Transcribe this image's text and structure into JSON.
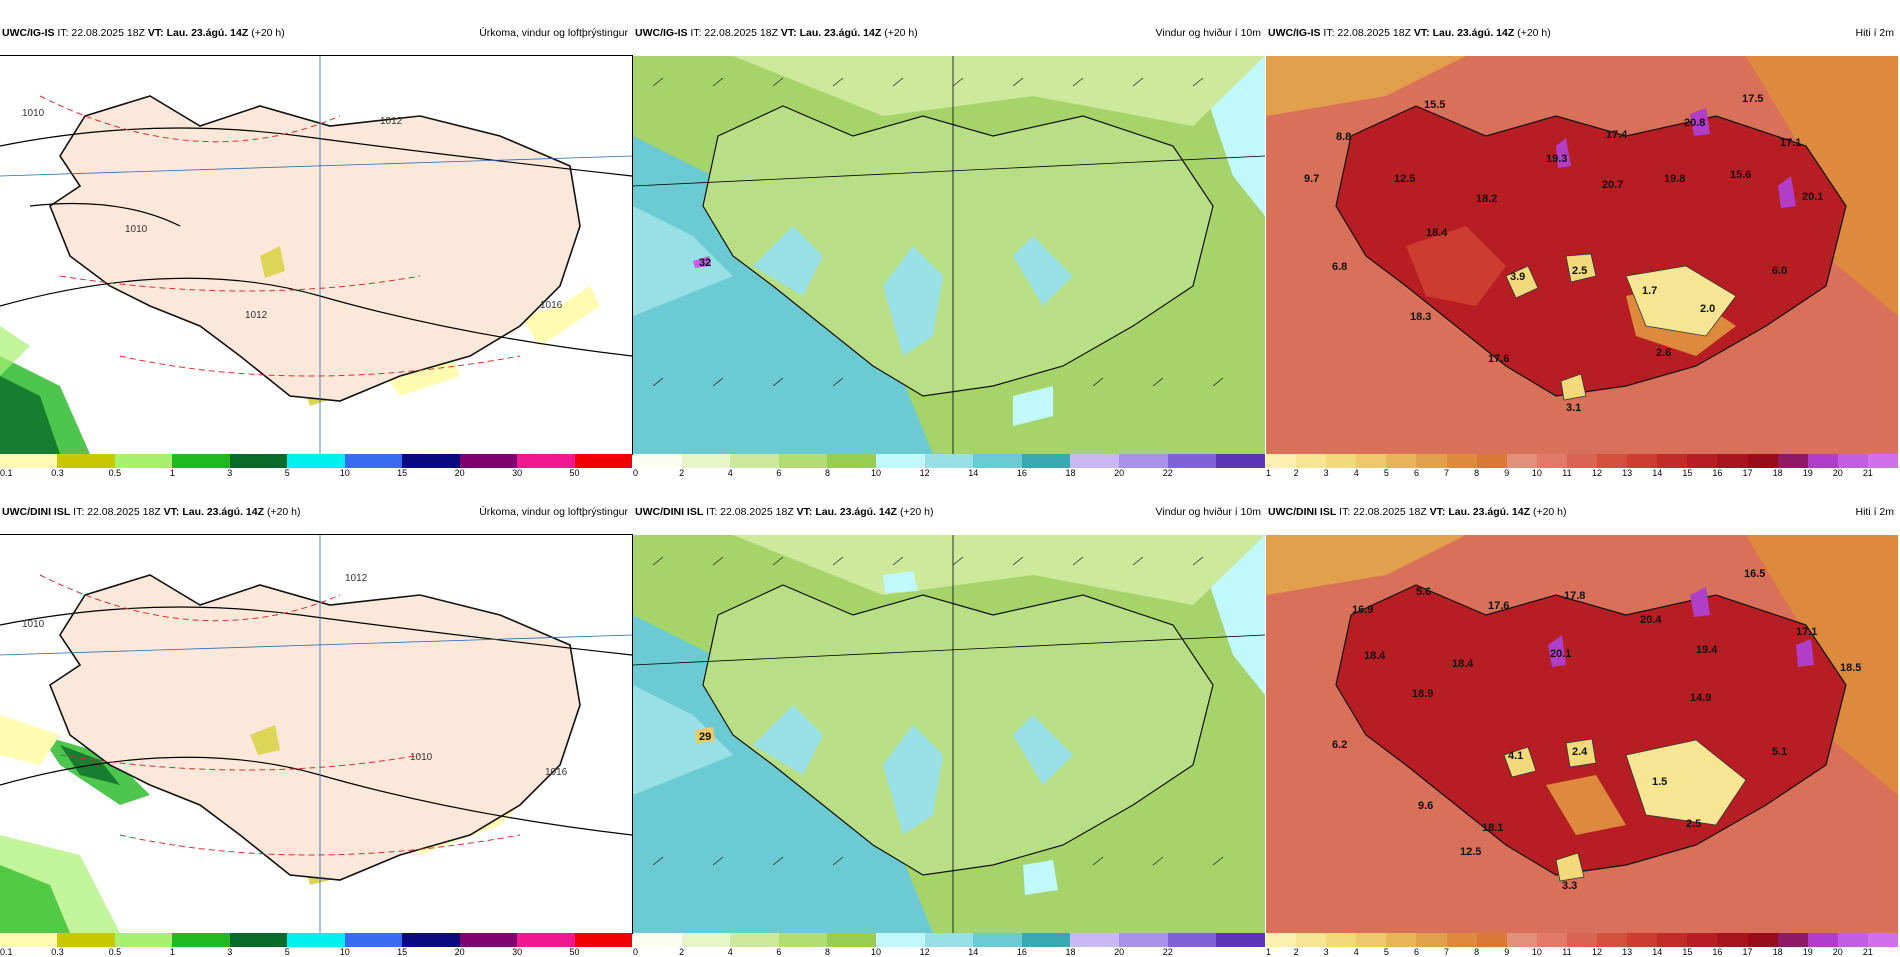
{
  "rows": [
    {
      "panels": [
        {
          "model": "UWC/IG-IS",
          "it": "22.08.2025 18Z",
          "vt": "Lau. 23.ágú. 14Z",
          "lead": "(+20 h)",
          "title": "Úrkoma, vindur og loftþrýstingur",
          "iso_labels": [
            "1010",
            "1012",
            "1010",
            "1012",
            "1016"
          ],
          "temp_labels": []
        },
        {
          "model": "UWC/IG-IS",
          "it": "22.08.2025 18Z",
          "vt": "Lau. 23.ágú. 14Z",
          "lead": "(+20 h)",
          "title": "Vindur og hviður í 10m",
          "gust": "32"
        },
        {
          "model": "UWC/IG-IS",
          "it": "22.08.2025 18Z",
          "vt": "Lau. 23.ágú. 14Z",
          "lead": "(+20 h)",
          "title": "Hiti í 2m",
          "temp_labels": [
            "15.5",
            "17.5",
            "8.8",
            "20.8",
            "17.4",
            "17.1",
            "9.7",
            "12.5",
            "19.3",
            "20.7",
            "19.8",
            "15.6",
            "18.2",
            "20.1",
            "18.4",
            "6.8",
            "3.9",
            "2.5",
            "6.0",
            "1.7",
            "2.0",
            "18.3",
            "17.6",
            "2.6",
            "3.1"
          ]
        }
      ]
    },
    {
      "panels": [
        {
          "model": "UWC/DINI ISL",
          "it": "22.08.2025 18Z",
          "vt": "Lau. 23.ágú. 14Z",
          "lead": "(+20 h)",
          "title": "Úrkoma, vindur og loftþrýstingur",
          "iso_labels": [
            "1012",
            "1010",
            "1010",
            "1016"
          ],
          "temp_labels": []
        },
        {
          "model": "UWC/DINI ISL",
          "it": "22.08.2025 18Z",
          "vt": "Lau. 23.ágú. 14Z",
          "lead": "(+20 h)",
          "title": "Vindur og hviður í 10m",
          "gust": "29"
        },
        {
          "model": "UWC/DINI ISL",
          "it": "22.08.2025 18Z",
          "vt": "Lau. 23.ágú. 14Z",
          "lead": "(+20 h)",
          "title": "Hiti í 2m",
          "temp_labels": [
            "5.6",
            "16.5",
            "16.9",
            "17.6",
            "17.8",
            "20.4",
            "17.1",
            "18.4",
            "20.1",
            "19.4",
            "18.5",
            "18.4",
            "18.9",
            "14.9",
            "6.2",
            "4.1",
            "2.4",
            "5.1",
            "1.5",
            "9.6",
            "18.1",
            "2.5",
            "12.5",
            "3.3"
          ]
        }
      ]
    }
  ],
  "legends": {
    "precip": {
      "ticks": [
        "0.1",
        "0.3",
        "0.5",
        "1",
        "3",
        "5",
        "10",
        "15",
        "20",
        "30",
        "50"
      ],
      "colors": [
        "#fffbb0",
        "#c8c800",
        "#a8f070",
        "#22b822",
        "#0a6a2a",
        "#00f0f0",
        "#3a6af0",
        "#0a0a80",
        "#800070",
        "#f01890",
        "#f00000"
      ]
    },
    "wind": {
      "ticks": [
        "0",
        "2",
        "4",
        "6",
        "8",
        "10",
        "12",
        "14",
        "16",
        "18",
        "20",
        "22"
      ],
      "colors": [
        "#fbfdf0",
        "#e6f6c8",
        "#cdea9c",
        "#b2dc74",
        "#98cc52",
        "#c0f8fb",
        "#98e0e6",
        "#6ccbd2",
        "#3aa8b0",
        "#c8b8f4",
        "#a893ea",
        "#7f62d6",
        "#5b34b8"
      ]
    },
    "temp": {
      "ticks": [
        "1",
        "2",
        "3",
        "4",
        "5",
        "6",
        "7",
        "8",
        "9",
        "10",
        "11",
        "12",
        "13",
        "14",
        "15",
        "16",
        "17",
        "18",
        "19",
        "20",
        "21"
      ],
      "colors": [
        "#fbf0b0",
        "#f6e694",
        "#f2d97c",
        "#eec86c",
        "#e8b45a",
        "#e3a04c",
        "#de8a3e",
        "#da7838",
        "#e3907a",
        "#e07a66",
        "#d96452",
        "#d4503e",
        "#cc3c30",
        "#c22c28",
        "#b61e24",
        "#a8141e",
        "#9a0c1a",
        "#8e1a66",
        "#b03ec8",
        "#c25ee0",
        "#d070ea"
      ]
    }
  }
}
